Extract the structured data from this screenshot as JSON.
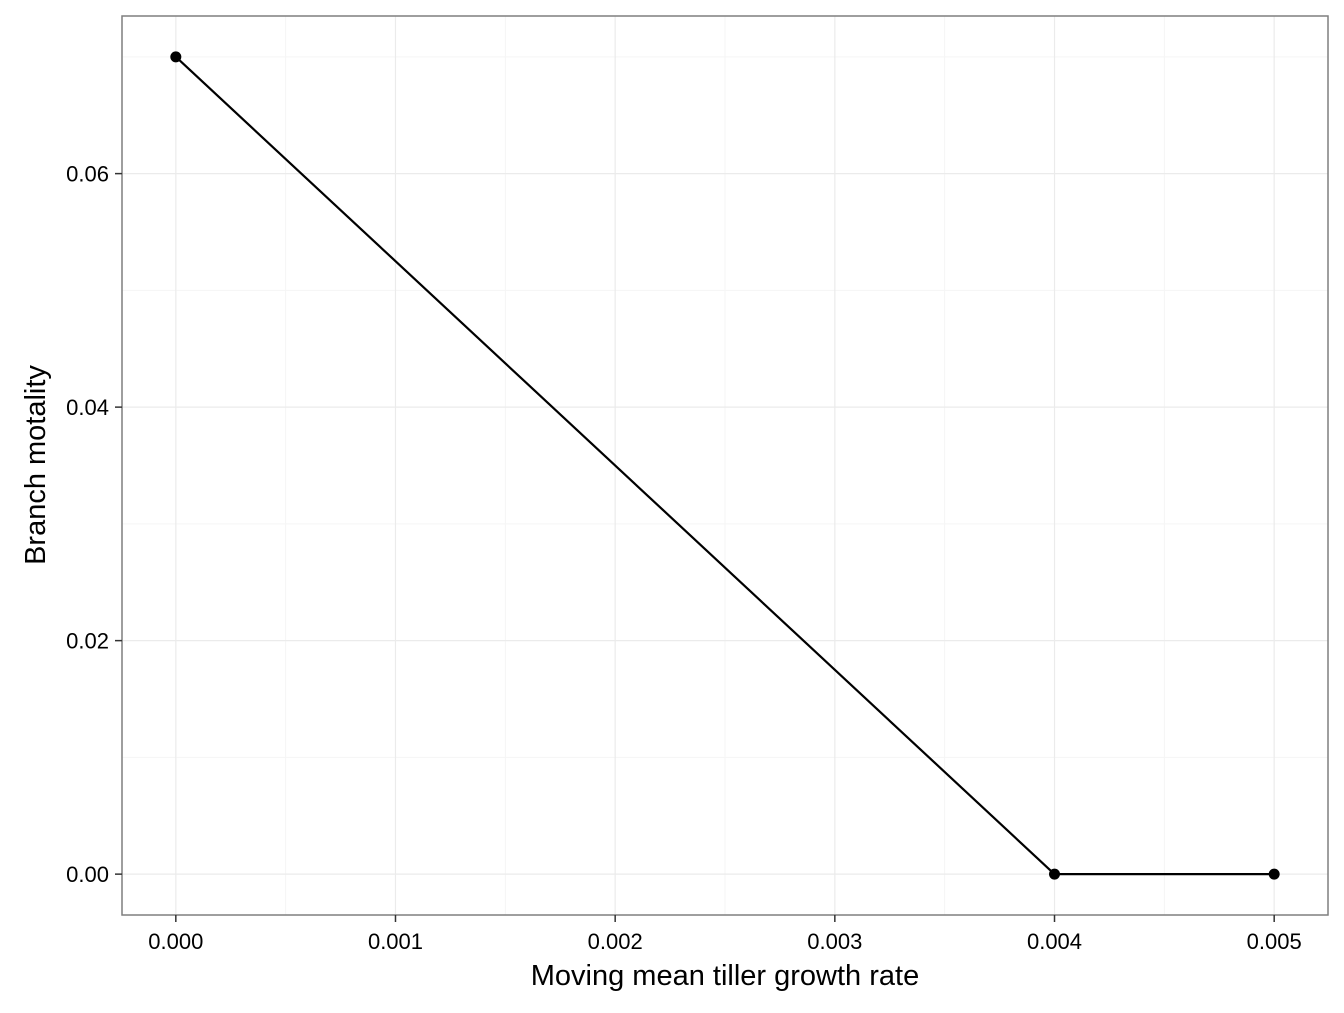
{
  "chart_data": {
    "type": "line",
    "title": "",
    "xlabel": "Moving mean tiller growth rate",
    "ylabel": "Branch motality",
    "x": [
      0.0,
      0.004,
      0.005
    ],
    "series": [
      {
        "values": [
          0.07,
          0.0,
          0.0
        ]
      }
    ],
    "xlim": [
      -0.000245,
      0.005245
    ],
    "ylim": [
      -0.0035,
      0.0735
    ],
    "x_ticks": [
      0.0,
      0.001,
      0.002,
      0.003,
      0.004,
      0.005
    ],
    "x_tick_labels": [
      "0.000",
      "0.001",
      "0.002",
      "0.003",
      "0.004",
      "0.005"
    ],
    "y_ticks": [
      0.0,
      0.02,
      0.04,
      0.06
    ],
    "y_tick_labels": [
      "0.00",
      "0.02",
      "0.04",
      "0.06"
    ],
    "grid": true,
    "legend": "none",
    "colors": {
      "line": "#000000",
      "point": "#000000",
      "grid_major": "#ebebeb",
      "grid_minor": "#f5f5f5",
      "panel_border": "#7f7f7f",
      "axis_tick": "#333333"
    }
  }
}
